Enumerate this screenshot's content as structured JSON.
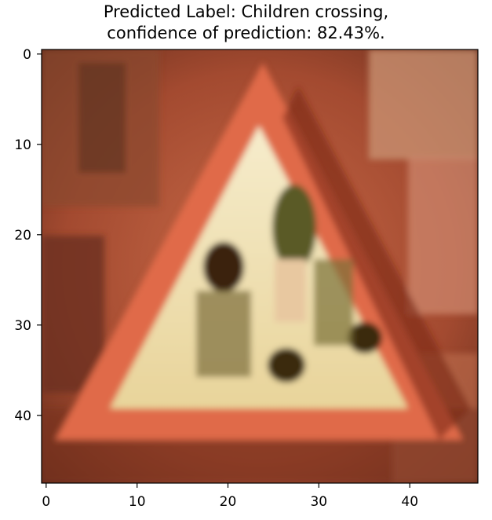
{
  "title": {
    "line1": "Predicted Label: Children crossing,",
    "line2": "confidence of prediction: 82.43%."
  },
  "image": {
    "description_name": "children-crossing-sign",
    "palette": {
      "background_dark": "#5a2a1a",
      "background_mid": "#b85a3a",
      "background_light": "#e8a080",
      "sign_border": "#e07050",
      "sign_fill": "#f0e8c0",
      "symbol_dark": "#3a2a10",
      "symbol_olive": "#6a6030"
    }
  },
  "axes": {
    "x_ticks": [
      "0",
      "10",
      "20",
      "30",
      "40"
    ],
    "y_ticks": [
      "0",
      "10",
      "20",
      "30",
      "40"
    ],
    "x_range": [
      -0.5,
      47.5
    ],
    "y_range": [
      -0.5,
      47.5
    ]
  }
}
